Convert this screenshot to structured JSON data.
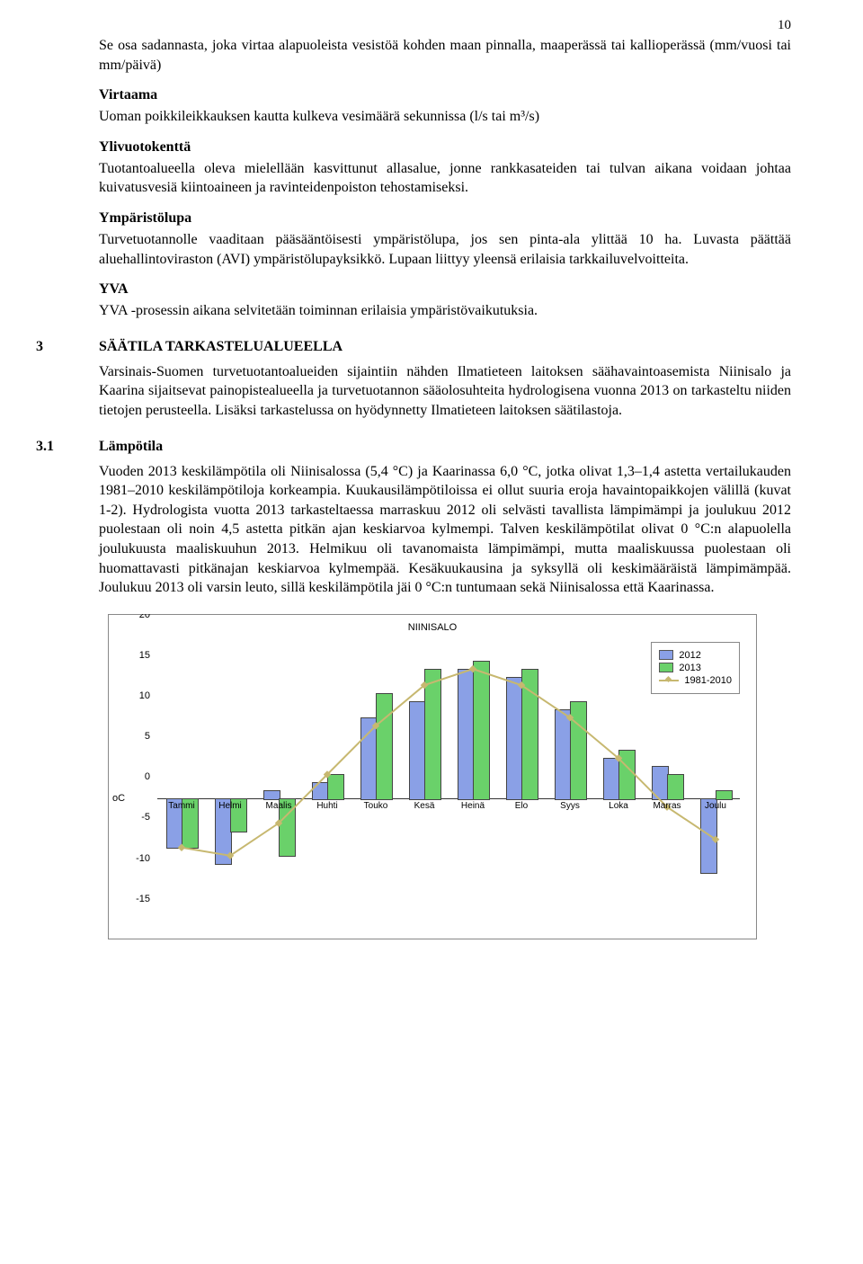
{
  "page_number": "10",
  "defs": [
    {
      "title": null,
      "text": "Se osa sadannasta, joka virtaa alapuoleista vesistöä kohden maan pinnalla, maaperässä tai kallioperässä (mm/vuosi tai mm/päivä)"
    },
    {
      "title": "Virtaama",
      "text": "Uoman poikkileikkauksen kautta kulkeva vesimäärä sekunnissa (l/s tai m³/s)"
    },
    {
      "title": "Ylivuotokenttä",
      "text": "Tuotantoalueella oleva mielellään kasvittunut allasalue, jonne rankkasateiden tai tulvan aikana voidaan johtaa kuivatusvesiä kiintoaineen ja ravinteidenpoiston tehostamiseksi."
    },
    {
      "title": "Ympäristölupa",
      "text": "Turvetuotannolle vaaditaan pääsääntöisesti ympäristölupa, jos sen pinta-ala ylittää 10 ha. Luvasta päättää aluehallintoviraston (AVI) ympäristölupayksikkö. Lupaan liittyy yleensä erilaisia tarkkailuvelvoitteita."
    },
    {
      "title": "YVA",
      "text": "YVA -prosessin aikana selvitetään toiminnan erilaisia ympäristövaikutuksia."
    }
  ],
  "sec3": {
    "num": "3",
    "title": "SÄÄTILA TARKASTELUALUEELLA",
    "text": "Varsinais-Suomen turvetuotantoalueiden sijaintiin nähden Ilmatieteen laitoksen säähavainto­asemista Niinisalo ja Kaarina sijaitsevat painopistealueella ja turvetuotannon sääolosuhteita hydrologisena vuonna 2013 on tarkasteltu niiden tietojen perusteella. Lisäksi tarkastelussa on hyödynnetty Ilmatieteen laitoksen säätilastoja."
  },
  "sec31": {
    "num": "3.1",
    "title": "Lämpötila",
    "text": "Vuoden 2013 keskilämpötila oli Niinisalossa (5,4 °C) ja Kaarinassa 6,0 °C, jotka olivat 1,3–1,4 astetta vertailukauden 1981–2010 keskilämpötiloja korkeampia. Kuukausilämpötiloissa ei ollut suuria eroja havaintopaikkojen välillä (kuvat 1-2). Hydrologista vuotta 2013 tarkasteltaessa marraskuu 2012 oli selvästi tavallista lämpimämpi ja joulukuu 2012 puolestaan oli noin 4,5 astetta pitkän ajan keskiarvoa kylmempi. Talven keskilämpötilat olivat 0 °C:n alapuolella joulukuusta maaliskuuhun 2013. Helmikuu oli tavanomaista lämpimämpi, mutta maaliskuussa puolestaan oli huomattavasti pitkänajan keskiarvoa kylmempää. Kesäkuukausina ja syksyllä oli keskimääräistä lämpimämpää. Joulukuu 2013 oli varsin leuto, sillä keskilämpötila jäi 0 °C:n tuntumaan sekä Niinisalossa että Kaarinassa."
  },
  "chart": {
    "title": "NIINISALO",
    "type": "bar+line",
    "categories": [
      "Tammi",
      "Helmi",
      "Maalis",
      "Huhti",
      "Touko",
      "Kesä",
      "Heinä",
      "Elo",
      "Syys",
      "Loka",
      "Marras",
      "Joulu"
    ],
    "series_2012": [
      -6,
      -8,
      1,
      2,
      10,
      12,
      16,
      15,
      11,
      5,
      4,
      -9
    ],
    "series_2013": [
      -6,
      -4,
      -7,
      3,
      13,
      16,
      17,
      16,
      12,
      6,
      3,
      1
    ],
    "series_line": [
      -6,
      -7,
      -3,
      3,
      9,
      14,
      16,
      14,
      10,
      5,
      -1,
      -5
    ],
    "color_2012": "#8aa0e6",
    "color_2013": "#6ad16a",
    "color_line": "#c7b870",
    "background": "#ffffff",
    "grid_color": "#333333",
    "ylim": [
      -15,
      20
    ],
    "ytick_step": 5,
    "yunit": "oC",
    "title_fontsize": 11,
    "label_fontsize": 10,
    "bar_width": 0.32,
    "legend": [
      "2012",
      "2013",
      "1981-2010"
    ]
  }
}
